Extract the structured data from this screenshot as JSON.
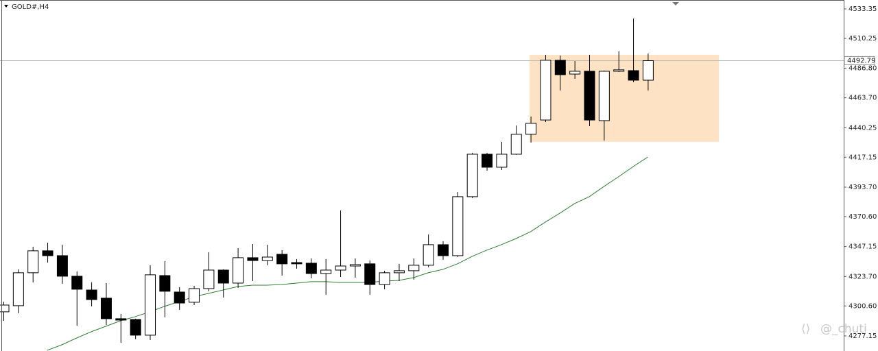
{
  "chart_data": {
    "type": "candlestick",
    "title": "GOLD#,H4",
    "series": {
      "open": [
        4296.0,
        4300.8,
        4326.6,
        4343.8,
        4340.0,
        4323.9,
        4313.1,
        4306.7,
        4290.6,
        4290.0,
        4277.7,
        4324.4,
        4311.5,
        4303.5,
        4314.2,
        4328.7,
        4318.5,
        4338.4,
        4336.2,
        4341.1,
        4334.6,
        4334.1,
        4326.0,
        4328.7,
        4331.9,
        4333.6,
        4317.4,
        4326.6,
        4328.2,
        4332.5,
        4348.6,
        4340.0,
        4386.2,
        4419.5,
        4409.3,
        4419.5,
        4435.1,
        4446.3,
        4493.1,
        4482.3,
        4484.5,
        4445.8,
        4484.5,
        4485.0,
        4477.5
      ],
      "high": [
        4304.0,
        4329.3,
        4347.0,
        4350.2,
        4348.6,
        4327.6,
        4319.0,
        4318.5,
        4294.3,
        4290.6,
        4332.5,
        4335.7,
        4315.3,
        4316.4,
        4342.7,
        4329.3,
        4345.9,
        4349.1,
        4348.6,
        4344.3,
        4337.3,
        4337.8,
        4337.3,
        4375.4,
        4337.8,
        4336.2,
        4328.2,
        4333.6,
        4337.8,
        4356.6,
        4351.3,
        4389.9,
        4420.6,
        4420.6,
        4429.2,
        4442.0,
        4449.0,
        4497.4,
        4496.8,
        4492.5,
        4497.4,
        4485.0,
        4500.1,
        4525.8,
        4498.4
      ],
      "low": [
        4289.0,
        4294.9,
        4319.0,
        4334.6,
        4318.0,
        4285.2,
        4300.3,
        4285.7,
        4271.8,
        4274.5,
        4273.9,
        4291.7,
        4297.6,
        4301.3,
        4312.1,
        4307.2,
        4314.8,
        4320.1,
        4332.5,
        4324.4,
        4329.8,
        4322.3,
        4309.4,
        4323.3,
        4322.8,
        4309.4,
        4313.7,
        4320.1,
        4321.2,
        4330.9,
        4336.8,
        4338.9,
        4385.1,
        4406.6,
        4407.1,
        4419.0,
        4428.6,
        4444.7,
        4469.4,
        4478.6,
        4441.5,
        4430.2,
        4483.9,
        4475.9,
        4469.4
      ],
      "close": [
        4301.3,
        4326.6,
        4343.8,
        4340.0,
        4323.9,
        4313.7,
        4305.6,
        4290.6,
        4289.5,
        4277.7,
        4325.0,
        4312.1,
        4302.9,
        4314.2,
        4328.7,
        4318.5,
        4338.4,
        4336.2,
        4338.9,
        4333.6,
        4333.6,
        4326.0,
        4328.7,
        4331.9,
        4333.0,
        4317.4,
        4326.6,
        4328.2,
        4332.5,
        4348.6,
        4340.0,
        4386.2,
        4419.5,
        4409.3,
        4419.5,
        4435.1,
        4443.7,
        4493.1,
        4481.8,
        4484.5,
        4446.3,
        4484.5,
        4485.6,
        4477.5,
        4492.79
      ],
      "up_color": "#ffffff",
      "down_color": "#000000"
    },
    "moving_average": {
      "color": "#2e7d32",
      "values": [
        null,
        null,
        null,
        4265.9,
        4270.2,
        4275.5,
        4280.4,
        4284.7,
        4289.0,
        4292.2,
        4296.0,
        4300.3,
        4304.0,
        4307.8,
        4310.4,
        4313.1,
        4315.8,
        4316.9,
        4316.9,
        4317.4,
        4318.5,
        4319.6,
        4319.6,
        4319.0,
        4319.0,
        4319.0,
        4320.1,
        4320.6,
        4322.8,
        4326.6,
        4329.2,
        4333.6,
        4339.4,
        4344.3,
        4348.6,
        4353.4,
        4358.8,
        4366.3,
        4373.3,
        4380.8,
        4386.2,
        4394.2,
        4401.8,
        4409.8,
        4417.3
      ]
    },
    "zone": {
      "high": 4497.4,
      "low": 4429.2,
      "color": "#fde3c4"
    },
    "current_price": 4492.79,
    "ylim": [
      4265.3,
      4540.33
    ],
    "yticks": [
      4533.35,
      4510.25,
      {
        "value": 4486.8,
        "label": "4486.80"
      },
      {
        "value": 4463.7,
        "label": "4463.70"
      },
      4440.25,
      4417.15,
      {
        "value": 4393.7,
        "label": "4393.70"
      },
      {
        "value": 4370.6,
        "label": "4370.60"
      },
      4347.15,
      {
        "value": 4323.7,
        "label": "4323.70"
      },
      {
        "value": 4300.6,
        "label": "4300.60"
      },
      4277.15
    ],
    "watermark": "@_chuti"
  }
}
